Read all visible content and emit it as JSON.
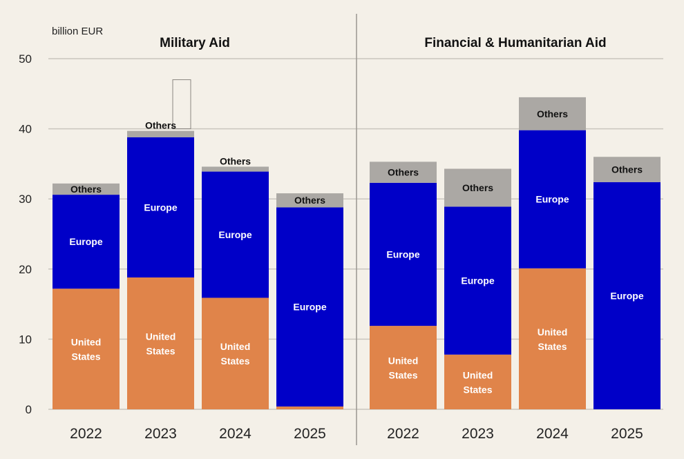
{
  "unit_label": "billion EUR",
  "chart_data": {
    "type": "bar",
    "stacked": true,
    "unit": "billion EUR",
    "ylim": [
      0,
      50
    ],
    "yticks": [
      0,
      10,
      20,
      30,
      40,
      50
    ],
    "colors": {
      "United States": "#e0844a",
      "Europe": "#0000c8",
      "Others": "#aba8a4",
      "grid": "#c9c5be",
      "background": "#f4f0e8",
      "label_light": "#ffffff",
      "label_dark": "#111111"
    },
    "segment_labels": {
      "United States": "United States",
      "Europe": "Europe",
      "Others": "Others"
    },
    "panels": [
      {
        "title": "Military Aid",
        "categories": [
          "2022",
          "2023",
          "2024",
          "2025"
        ],
        "series": [
          {
            "name": "United States",
            "values": [
              17.2,
              18.8,
              15.9,
              0.4
            ],
            "show_label": [
              true,
              true,
              true,
              false
            ]
          },
          {
            "name": "Europe",
            "values": [
              13.4,
              20.0,
              18.0,
              28.4
            ],
            "show_label": [
              true,
              true,
              true,
              true
            ]
          },
          {
            "name": "Others",
            "values": [
              1.6,
              0.9,
              0.7,
              2.0
            ],
            "show_label": [
              true,
              true,
              true,
              true
            ]
          }
        ],
        "annotation": {
          "category": "2023",
          "type": "outline-box",
          "from": 40.0,
          "to": 47.0
        }
      },
      {
        "title": "Financial & Humanitarian Aid",
        "categories": [
          "2022",
          "2023",
          "2024",
          "2025"
        ],
        "series": [
          {
            "name": "United States",
            "values": [
              11.9,
              7.8,
              20.1,
              0.0
            ],
            "show_label": [
              true,
              true,
              true,
              false
            ]
          },
          {
            "name": "Europe",
            "values": [
              20.4,
              21.1,
              19.7,
              32.4
            ],
            "show_label": [
              true,
              true,
              true,
              true
            ]
          },
          {
            "name": "Others",
            "values": [
              3.0,
              5.4,
              4.7,
              3.6
            ],
            "show_label": [
              true,
              true,
              true,
              true
            ]
          }
        ]
      }
    ]
  }
}
